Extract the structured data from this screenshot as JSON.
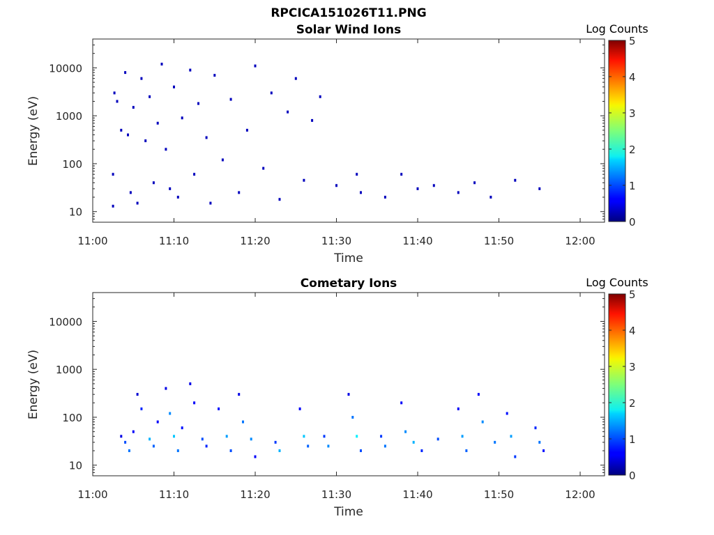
{
  "figure": {
    "title": "RPCICA151026T11.PNG"
  },
  "chart_data": [
    {
      "type": "heatmap",
      "title": "Solar Wind Ions",
      "xlabel": "Time",
      "ylabel": "Energy (eV)",
      "x_ticks": [
        "11:00",
        "11:10",
        "11:20",
        "11:30",
        "11:40",
        "11:50",
        "12:00"
      ],
      "y_ticks": [
        "10",
        "100",
        "1000",
        "10000"
      ],
      "xlim": [
        "11:00",
        "12:03"
      ],
      "ylim_ev": [
        6,
        40000
      ],
      "yscale": "log",
      "colorbar": {
        "label": "Log Counts",
        "range": [
          0,
          5
        ],
        "ticks": [
          "0",
          "1",
          "2",
          "3",
          "4",
          "5"
        ],
        "colormap": "jet"
      },
      "grid": false,
      "points": [
        [
          "11:02:30",
          13,
          0.3
        ],
        [
          "11:02:30",
          60,
          0.3
        ],
        [
          "11:02:40",
          3000,
          0.3
        ],
        [
          "11:03:00",
          2000,
          0.3
        ],
        [
          "11:03:30",
          500,
          0.3
        ],
        [
          "11:04:00",
          8000,
          0.3
        ],
        [
          "11:04:20",
          400,
          0.3
        ],
        [
          "11:04:40",
          25,
          0.3
        ],
        [
          "11:05:00",
          1500,
          0.3
        ],
        [
          "11:05:30",
          15,
          0.3
        ],
        [
          "11:06:00",
          6000,
          0.3
        ],
        [
          "11:06:30",
          300,
          0.3
        ],
        [
          "11:07:00",
          2500,
          0.3
        ],
        [
          "11:07:30",
          40,
          0.3
        ],
        [
          "11:08:00",
          700,
          0.3
        ],
        [
          "11:08:30",
          12000,
          0.3
        ],
        [
          "11:09:00",
          200,
          0.3
        ],
        [
          "11:09:30",
          30,
          0.3
        ],
        [
          "11:10:00",
          4000,
          0.3
        ],
        [
          "11:10:30",
          20,
          0.3
        ],
        [
          "11:11:00",
          900,
          0.3
        ],
        [
          "11:12:00",
          9000,
          0.3
        ],
        [
          "11:12:30",
          60,
          0.3
        ],
        [
          "11:13:00",
          1800,
          0.3
        ],
        [
          "11:14:00",
          350,
          0.3
        ],
        [
          "11:14:30",
          15,
          0.3
        ],
        [
          "11:15:00",
          7000,
          0.3
        ],
        [
          "11:16:00",
          120,
          0.3
        ],
        [
          "11:17:00",
          2200,
          0.3
        ],
        [
          "11:18:00",
          25,
          0.3
        ],
        [
          "11:19:00",
          500,
          0.3
        ],
        [
          "11:20:00",
          11000,
          0.3
        ],
        [
          "11:21:00",
          80,
          0.3
        ],
        [
          "11:22:00",
          3000,
          0.3
        ],
        [
          "11:23:00",
          18,
          0.3
        ],
        [
          "11:24:00",
          1200,
          0.3
        ],
        [
          "11:25:00",
          6000,
          0.3
        ],
        [
          "11:26:00",
          45,
          0.3
        ],
        [
          "11:27:00",
          800,
          0.3
        ],
        [
          "11:28:00",
          2500,
          0.3
        ],
        [
          "11:30:00",
          35,
          0.3
        ],
        [
          "11:32:30",
          60,
          0.3
        ],
        [
          "11:33:00",
          25,
          0.3
        ],
        [
          "11:36:00",
          20,
          0.3
        ],
        [
          "11:38:00",
          60,
          0.3
        ],
        [
          "11:40:00",
          30,
          0.3
        ],
        [
          "11:42:00",
          35,
          0.3
        ],
        [
          "11:45:00",
          25,
          0.3
        ],
        [
          "11:47:00",
          40,
          0.3
        ],
        [
          "11:49:00",
          20,
          0.3
        ],
        [
          "11:52:00",
          45,
          0.3
        ],
        [
          "11:55:00",
          30,
          0.3
        ]
      ]
    },
    {
      "type": "heatmap",
      "title": "Cometary Ions",
      "xlabel": "Time",
      "ylabel": "Energy (eV)",
      "x_ticks": [
        "11:00",
        "11:10",
        "11:20",
        "11:30",
        "11:40",
        "11:50",
        "12:00"
      ],
      "y_ticks": [
        "10",
        "100",
        "1000",
        "10000"
      ],
      "xlim": [
        "11:00",
        "12:03"
      ],
      "ylim_ev": [
        6,
        40000
      ],
      "yscale": "log",
      "colorbar": {
        "label": "Log Counts",
        "range": [
          0,
          5
        ],
        "ticks": [
          "0",
          "1",
          "2",
          "3",
          "4",
          "5"
        ],
        "colormap": "jet"
      },
      "grid": false,
      "points": [
        [
          "11:03:30",
          40,
          0.5
        ],
        [
          "11:04:00",
          30,
          1.0
        ],
        [
          "11:04:30",
          20,
          1.2
        ],
        [
          "11:05:00",
          50,
          0.6
        ],
        [
          "11:05:30",
          300,
          0.4
        ],
        [
          "11:06:00",
          150,
          0.8
        ],
        [
          "11:07:00",
          35,
          1.5
        ],
        [
          "11:07:30",
          25,
          1.1
        ],
        [
          "11:08:00",
          80,
          0.6
        ],
        [
          "11:09:00",
          400,
          0.5
        ],
        [
          "11:09:30",
          120,
          1.3
        ],
        [
          "11:10:00",
          40,
          1.6
        ],
        [
          "11:10:30",
          20,
          1.2
        ],
        [
          "11:11:00",
          60,
          0.7
        ],
        [
          "11:12:00",
          500,
          0.5
        ],
        [
          "11:12:30",
          200,
          0.6
        ],
        [
          "11:13:30",
          35,
          1.0
        ],
        [
          "11:14:00",
          25,
          0.8
        ],
        [
          "11:15:30",
          150,
          0.7
        ],
        [
          "11:16:30",
          40,
          1.4
        ],
        [
          "11:17:00",
          20,
          1.0
        ],
        [
          "11:18:00",
          300,
          0.5
        ],
        [
          "11:18:30",
          80,
          1.2
        ],
        [
          "11:19:30",
          35,
          1.3
        ],
        [
          "11:20:00",
          15,
          0.6
        ],
        [
          "11:22:30",
          30,
          0.9
        ],
        [
          "11:23:00",
          20,
          1.5
        ],
        [
          "11:25:30",
          150,
          0.6
        ],
        [
          "11:26:00",
          40,
          1.6
        ],
        [
          "11:26:30",
          25,
          1.1
        ],
        [
          "11:28:30",
          40,
          0.9
        ],
        [
          "11:29:00",
          25,
          1.3
        ],
        [
          "11:31:30",
          300,
          0.5
        ],
        [
          "11:32:00",
          100,
          1.2
        ],
        [
          "11:32:30",
          40,
          1.8
        ],
        [
          "11:33:00",
          20,
          1.0
        ],
        [
          "11:35:30",
          40,
          0.9
        ],
        [
          "11:36:00",
          25,
          1.2
        ],
        [
          "11:38:00",
          200,
          0.6
        ],
        [
          "11:38:30",
          50,
          1.3
        ],
        [
          "11:39:30",
          30,
          1.5
        ],
        [
          "11:40:30",
          20,
          0.8
        ],
        [
          "11:42:30",
          35,
          1.0
        ],
        [
          "11:45:00",
          150,
          0.6
        ],
        [
          "11:45:30",
          40,
          1.4
        ],
        [
          "11:46:00",
          20,
          1.1
        ],
        [
          "11:47:30",
          300,
          0.6
        ],
        [
          "11:48:00",
          80,
          1.3
        ],
        [
          "11:49:30",
          30,
          1.2
        ],
        [
          "11:51:00",
          120,
          0.7
        ],
        [
          "11:51:30",
          40,
          1.4
        ],
        [
          "11:52:00",
          15,
          0.9
        ],
        [
          "11:54:30",
          60,
          0.8
        ],
        [
          "11:55:00",
          30,
          1.2
        ],
        [
          "11:55:30",
          20,
          0.7
        ]
      ]
    }
  ]
}
